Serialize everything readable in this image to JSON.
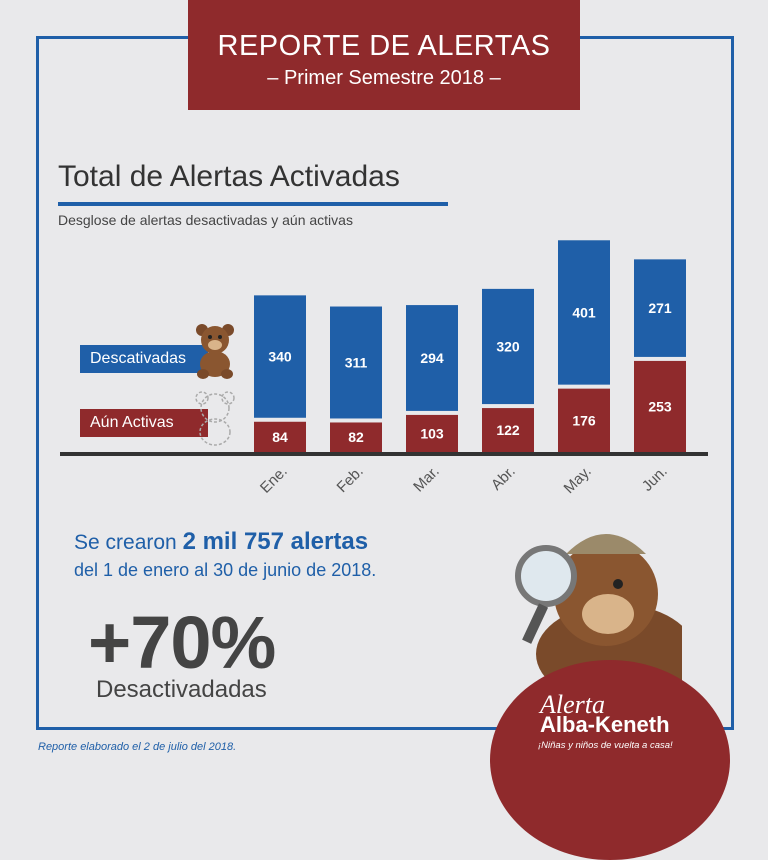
{
  "header": {
    "title": "REPORTE DE ALERTAS",
    "subtitle": "– Primer Semestre 2018 –"
  },
  "chart_data": {
    "type": "bar",
    "title": "Total de Alertas Activadas",
    "subtitle": "Desglose de alertas desactivadas y aún activas",
    "categories": [
      "Ene.",
      "Feb.",
      "Mar.",
      "Abr.",
      "May.",
      "Jun."
    ],
    "series": [
      {
        "name": "Descativadas",
        "values": [
          340,
          311,
          294,
          320,
          401,
          271
        ]
      },
      {
        "name": "Aún Activas",
        "values": [
          84,
          82,
          103,
          122,
          176,
          253
        ]
      }
    ],
    "stacked": true,
    "colors": {
      "Descativadas": "#1f5fa8",
      "Aún Activas": "#8f2a2c"
    }
  },
  "legend": {
    "descativadas": "Descativadas",
    "activas": "Aún Activas"
  },
  "summary": {
    "line1_pre": "Se crearon",
    "line1_bold": "2 mil 757 alertas",
    "line2": "del 1 de enero al 30 de junio de 2018.",
    "big": "+70%",
    "big_label": "Desactivadadas"
  },
  "footer": "Reporte elaborado el 2 de julio del 2018.",
  "logo": {
    "line1": "Alerta",
    "line2": "Alba-Keneth",
    "line3": "¡Niñas y niños de vuelta a casa!"
  }
}
